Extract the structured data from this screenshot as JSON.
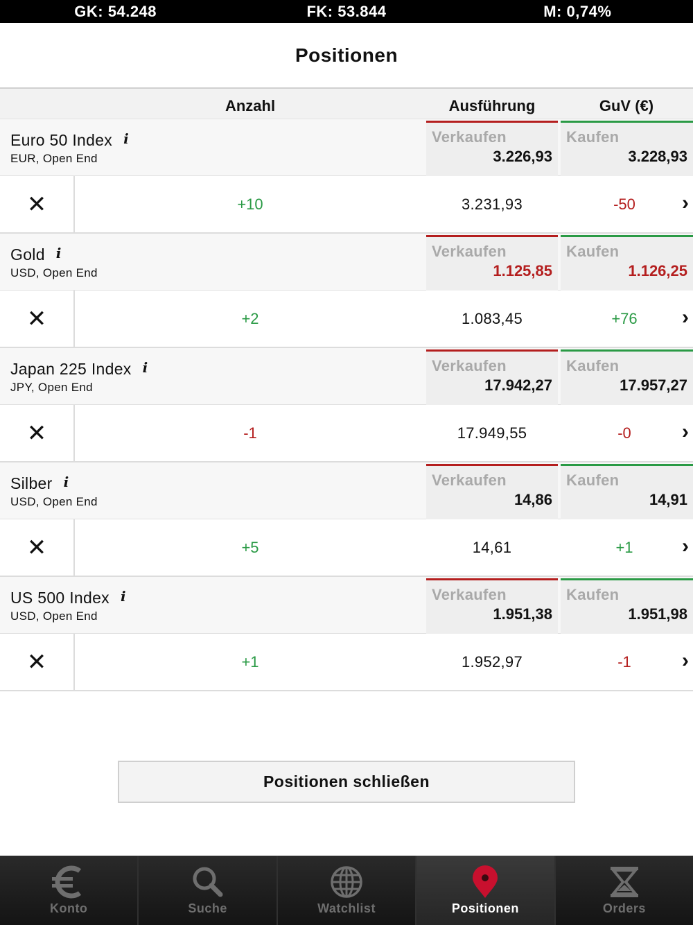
{
  "status": {
    "gk": "GK: 54.248",
    "fk": "FK: 53.844",
    "m": "M: 0,74%"
  },
  "page": {
    "title": "Positionen"
  },
  "table": {
    "col_anzahl": "Anzahl",
    "col_ausfuehrung": "Ausführung",
    "col_guv": "GuV (€)"
  },
  "positions": [
    {
      "name": "Euro 50 Index",
      "sub": "EUR, Open End",
      "sell_label": "Verkaufen",
      "sell": "3.226,93",
      "buy_label": "Kaufen",
      "buy": "3.228,93",
      "quote_color": "#111111",
      "qty": "+10",
      "qty_color": "#2a9a45",
      "exec": "3.231,93",
      "guv": "-50",
      "guv_color": "#b41e1e"
    },
    {
      "name": "Gold",
      "sub": "USD, Open End",
      "sell_label": "Verkaufen",
      "sell": "1.125,85",
      "buy_label": "Kaufen",
      "buy": "1.126,25",
      "quote_color": "#b41e1e",
      "qty": "+2",
      "qty_color": "#2a9a45",
      "exec": "1.083,45",
      "guv": "+76",
      "guv_color": "#2a9a45"
    },
    {
      "name": "Japan 225 Index",
      "sub": "JPY, Open End",
      "sell_label": "Verkaufen",
      "sell": "17.942,27",
      "buy_label": "Kaufen",
      "buy": "17.957,27",
      "quote_color": "#111111",
      "qty": "-1",
      "qty_color": "#b41e1e",
      "exec": "17.949,55",
      "guv": "-0",
      "guv_color": "#b41e1e"
    },
    {
      "name": "Silber",
      "sub": "USD, Open End",
      "sell_label": "Verkaufen",
      "sell": "14,86",
      "buy_label": "Kaufen",
      "buy": "14,91",
      "quote_color": "#111111",
      "qty": "+5",
      "qty_color": "#2a9a45",
      "exec": "14,61",
      "guv": "+1",
      "guv_color": "#2a9a45"
    },
    {
      "name": "US 500 Index",
      "sub": "USD, Open End",
      "sell_label": "Verkaufen",
      "sell": "1.951,38",
      "buy_label": "Kaufen",
      "buy": "1.951,98",
      "quote_color": "#111111",
      "qty": "+1",
      "qty_color": "#2a9a45",
      "exec": "1.952,97",
      "guv": "-1",
      "guv_color": "#b41e1e"
    }
  ],
  "close_all_label": "Positionen schließen",
  "tabs": [
    {
      "label": "Konto",
      "icon": "euro-icon",
      "active": false
    },
    {
      "label": "Suche",
      "icon": "search-icon",
      "active": false
    },
    {
      "label": "Watchlist",
      "icon": "globe-icon",
      "active": false
    },
    {
      "label": "Positionen",
      "icon": "location-pin-icon",
      "active": true
    },
    {
      "label": "Orders",
      "icon": "hourglass-icon",
      "active": false
    }
  ],
  "colors": {
    "sell_accent": "#b41e1e",
    "buy_accent": "#2a9a45",
    "active_tab_icon": "#c8102e"
  }
}
